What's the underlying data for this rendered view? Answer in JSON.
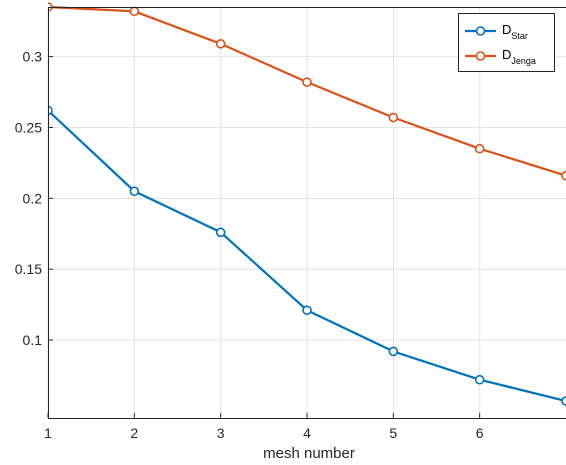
{
  "chart_data": {
    "type": "line",
    "xlabel": "mesh number",
    "ylabel": "",
    "xlim": [
      1,
      7
    ],
    "ylim": [
      0.045,
      0.335
    ],
    "xticks": [
      1,
      2,
      3,
      4,
      5,
      6
    ],
    "yticks": [
      0.1,
      0.15,
      0.2,
      0.25,
      0.3
    ],
    "ytick_labels": [
      "0.1",
      "0.15",
      "0.2",
      "0.25",
      "0.3"
    ],
    "grid": true,
    "legend_position": "top-right",
    "series": [
      {
        "name": "D",
        "name_subscript": "Star",
        "color": "#0072BD",
        "x": [
          1,
          2,
          3,
          4,
          5,
          6,
          7
        ],
        "y": [
          0.262,
          0.205,
          0.176,
          0.121,
          0.092,
          0.072,
          0.057
        ]
      },
      {
        "name": "D",
        "name_subscript": "Jenga",
        "color": "#D95319",
        "x": [
          1,
          2,
          3,
          4,
          5,
          6,
          7
        ],
        "y": [
          0.335,
          0.332,
          0.309,
          0.282,
          0.257,
          0.235,
          0.216
        ]
      }
    ]
  }
}
